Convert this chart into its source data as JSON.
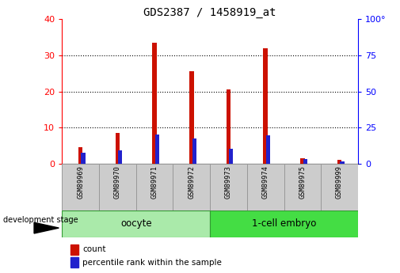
{
  "title": "GDS2387 / 1458919_at",
  "samples": [
    "GSM89969",
    "GSM89970",
    "GSM89971",
    "GSM89972",
    "GSM89973",
    "GSM89974",
    "GSM89975",
    "GSM89999"
  ],
  "count": [
    4.5,
    8.5,
    33.5,
    25.5,
    20.5,
    32.0,
    1.5,
    1.0
  ],
  "percentile": [
    7.5,
    9.5,
    20.5,
    17.5,
    10.5,
    19.5,
    3.5,
    1.5
  ],
  "groups": [
    {
      "label": "oocyte",
      "start": 0,
      "end": 4,
      "color": "#aaeaaa"
    },
    {
      "label": "1-cell embryo",
      "start": 4,
      "end": 8,
      "color": "#44dd44"
    }
  ],
  "left_ylim": [
    0,
    40
  ],
  "right_ylim": [
    0,
    100
  ],
  "left_yticks": [
    0,
    10,
    20,
    30,
    40
  ],
  "right_yticks": [
    0,
    25,
    50,
    75,
    100
  ],
  "right_yticklabels": [
    "0",
    "25",
    "50",
    "75",
    "100°"
  ],
  "bar_color": "#cc1100",
  "percentile_color": "#2222cc",
  "bg_color": "#ffffff",
  "plot_bg": "#ffffff",
  "grid_color": "#000000",
  "label_bg_color": "#cccccc",
  "legend_count_label": "count",
  "legend_pct_label": "percentile rank within the sample",
  "dev_stage_label": "development stage",
  "bar_width": 0.12,
  "pct_bar_width": 0.12
}
